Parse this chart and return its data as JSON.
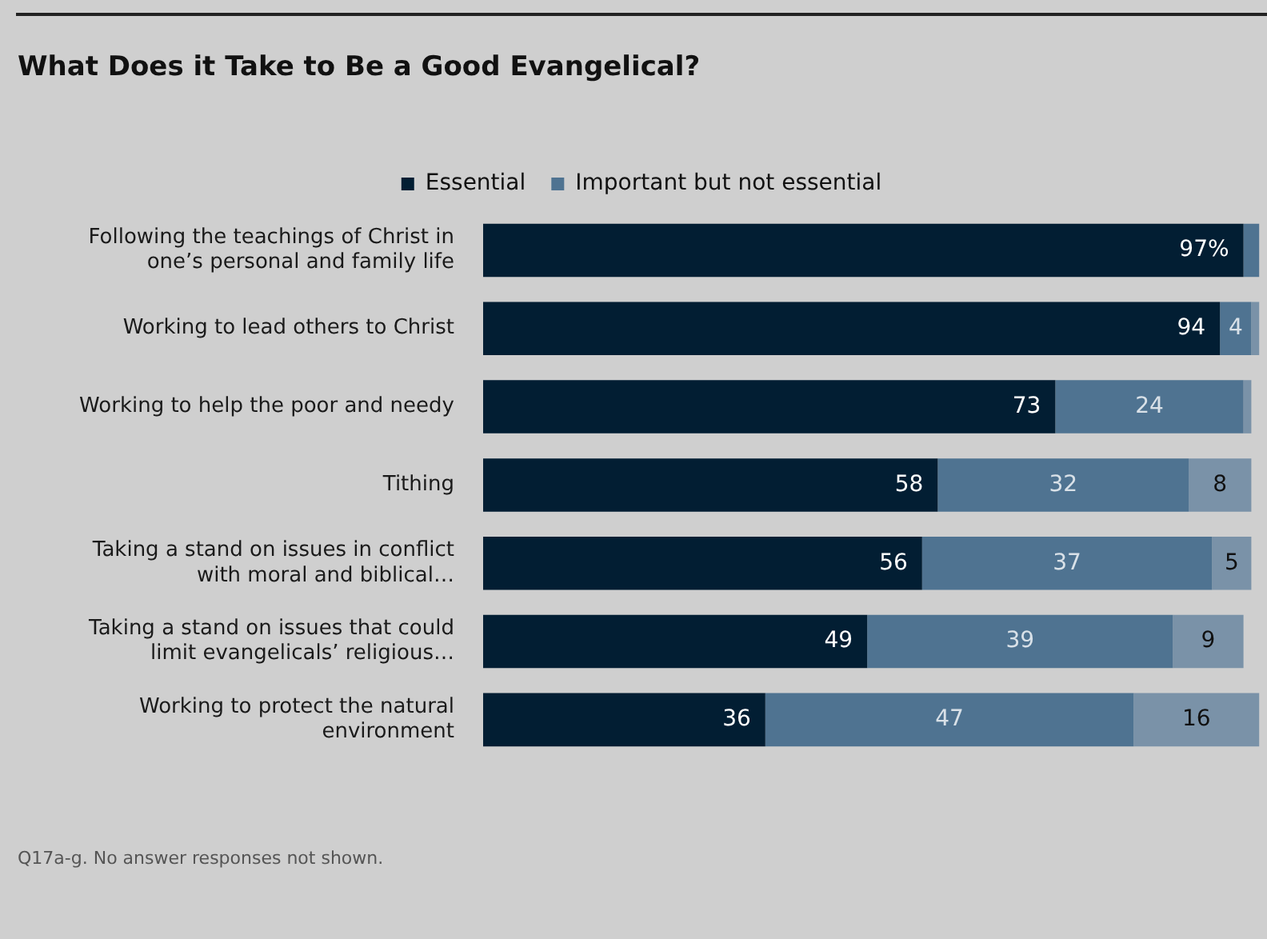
{
  "chart_data": {
    "type": "bar",
    "orientation": "horizontal",
    "stacked": true,
    "title": "What Does it Take to Be a Good Evangelical?",
    "categories": [
      "Following the teachings of Christ in one’s personal and family life",
      "Working to lead others to Christ",
      "Working to help the poor and needy",
      "Tithing",
      "Taking a stand on issues in conflict with moral and biblical…",
      "Taking a stand on issues that could limit evangelicals’ religious…",
      "Working to protect the natural environment"
    ],
    "series": [
      {
        "name": "Essential",
        "color": "#021e33",
        "values": [
          97,
          94,
          73,
          58,
          56,
          49,
          36
        ],
        "value_labels": [
          "97%",
          "94",
          "73",
          "58",
          "56",
          "49",
          "36"
        ]
      },
      {
        "name": "Important but not essential",
        "color": "#4f7391",
        "values": [
          2,
          4,
          24,
          32,
          37,
          39,
          47
        ],
        "value_labels": [
          null,
          "4",
          "24",
          "32",
          "37",
          "39",
          "47"
        ]
      },
      {
        "color": "#7a92a8",
        "values": [
          null,
          1,
          1,
          8,
          5,
          9,
          16
        ],
        "value_labels": [
          null,
          null,
          null,
          "8",
          "5",
          "9",
          "16"
        ]
      }
    ],
    "legend": "top",
    "annotations": [
      "Q17a-g. No answer responses not shown."
    ]
  }
}
